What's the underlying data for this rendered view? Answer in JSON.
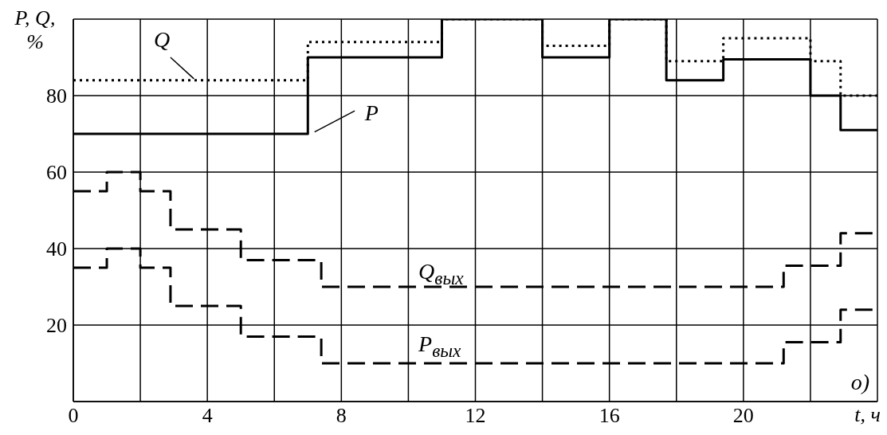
{
  "chart_data": {
    "type": "step",
    "ylabel": "P, Q, %",
    "xlabel": "t, ч",
    "xlim": [
      0,
      24
    ],
    "ylim": [
      0,
      100
    ],
    "xticks": [
      0,
      {
        "value": 2,
        "label": null
      },
      4,
      {
        "value": 6,
        "label": null
      },
      8,
      {
        "value": 10,
        "label": null
      },
      12,
      {
        "value": 14,
        "label": null
      },
      16,
      {
        "value": 18,
        "label": null
      },
      20,
      {
        "value": 22,
        "label": null
      },
      {
        "value": 24,
        "label": null
      }
    ],
    "yticks": [
      {
        "value": 0,
        "label": null
      },
      20,
      40,
      60,
      80,
      {
        "value": 100,
        "label": null
      }
    ],
    "grid": true,
    "annotations": [
      "o)"
    ],
    "series": [
      {
        "name": "P",
        "color": "#000000",
        "line_style": "solid",
        "x": [
          0,
          7,
          11,
          14,
          16,
          17.7,
          19.4,
          22,
          22.9,
          24
        ],
        "values": [
          70,
          90,
          100,
          90,
          100,
          84,
          89.5,
          80,
          71,
          71
        ]
      },
      {
        "name": "Q",
        "color": "#000000",
        "line_style": "dotted",
        "x": [
          0,
          7,
          11,
          14,
          16,
          17.7,
          19.4,
          22,
          22.9,
          24
        ],
        "values": [
          84,
          94,
          100,
          93,
          100,
          89,
          95,
          89,
          80,
          80
        ]
      },
      {
        "name": "Q$_{вых}$",
        "color": "#000000",
        "line_style": "dashed",
        "x": [
          0,
          1,
          2,
          2.9,
          5,
          7.4,
          21.2,
          22.9,
          24
        ],
        "values": [
          55,
          60,
          55,
          45,
          37,
          30,
          35.5,
          44,
          44
        ]
      },
      {
        "name": "P$_{вых}$",
        "color": "#000000",
        "line_style": "dashed",
        "x": [
          0,
          1,
          2,
          2.9,
          5,
          7.4,
          21.2,
          22.9,
          24
        ],
        "values": [
          35,
          40,
          35,
          25,
          17,
          10,
          15.5,
          24,
          24
        ]
      }
    ]
  }
}
